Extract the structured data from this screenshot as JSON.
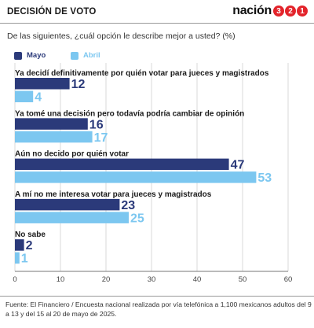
{
  "header": {
    "title": "DECISIÓN DE VOTO",
    "brand_word": "nación",
    "brand_digits": [
      "3",
      "2",
      "1"
    ]
  },
  "question": "De las siguientes, ¿cuál opción le describe mejor a usted? (%)",
  "colors": {
    "mayo": "#2b3a7a",
    "abril": "#7cc7f0",
    "brand_red": "#e3242b"
  },
  "chart_data": {
    "type": "bar",
    "orientation": "horizontal",
    "title": "",
    "categories": [
      "Ya decidí definitivamente por quién votar para jueces y magistrados",
      "Ya tomé una decisión pero todavía podría cambiar de opinión",
      "Aún no decido por quién votar",
      "A mí no me interesa votar para jueces y magistrados",
      "No sabe"
    ],
    "series": [
      {
        "name": "Mayo",
        "values": [
          12,
          16,
          47,
          23,
          2
        ]
      },
      {
        "name": "Abril",
        "values": [
          4,
          17,
          53,
          25,
          1
        ]
      }
    ],
    "xlim": [
      0,
      60
    ],
    "xticks": [
      0,
      10,
      20,
      30,
      40,
      50,
      60
    ],
    "grid": true,
    "legend_position": "top-left"
  },
  "source": "Fuente: El Financiero / Encuesta nacional realizada por vía telefónica a 1,100 mexicanos adultos del 9 a 13 y del 15 al 20 de mayo de 2025."
}
